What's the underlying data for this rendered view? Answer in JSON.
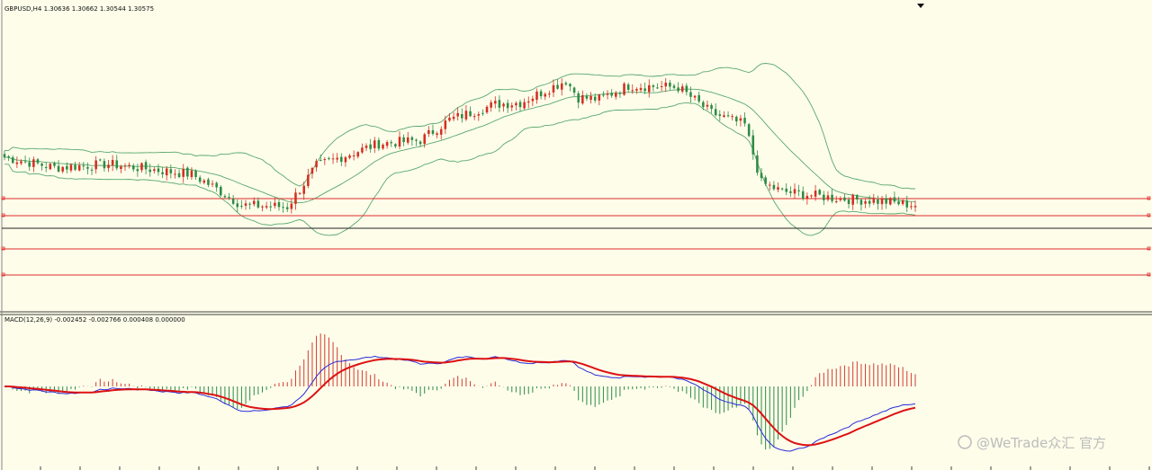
{
  "window": {
    "price_header": "GBPUSD,H4  1.30636 1.30662 1.30544 1.30575",
    "macd_header": "MACD(12,26,9) -0.002452 -0.002766 0.000408 0.000000",
    "watermark": "@WeTrade众汇 官方"
  },
  "colors": {
    "background": "#fdfdea",
    "bull_candle": "#d32f20",
    "bear_candle": "#2e8b45",
    "bollinger": "#5aa86e",
    "level_line": "#e02a2a",
    "current_price_line": "#222222",
    "macd_line": "#2b2bd8",
    "signal_line": "#dd1111",
    "hist_pos": "#d33b30",
    "hist_neg": "#2e8b45"
  },
  "chart_data": [
    {
      "type": "candlestick",
      "title": "GBPUSD,H4",
      "last_bar": {
        "open": 1.30636,
        "high": 1.30662,
        "low": 1.30544,
        "close": 1.30575
      },
      "indicators": [
        "Bollinger Bands"
      ],
      "horizontal_levels": 4,
      "bars": 220,
      "trend_profile": [
        {
          "bar": 0,
          "close": 50
        },
        {
          "bar": 12,
          "close": 44
        },
        {
          "bar": 25,
          "close": 46
        },
        {
          "bar": 45,
          "close": 40
        },
        {
          "bar": 50,
          "close": 33
        },
        {
          "bar": 57,
          "close": 22
        },
        {
          "bar": 68,
          "close": 21
        },
        {
          "bar": 75,
          "close": 45
        },
        {
          "bar": 90,
          "close": 58
        },
        {
          "bar": 100,
          "close": 60
        },
        {
          "bar": 107,
          "close": 72
        },
        {
          "bar": 118,
          "close": 81
        },
        {
          "bar": 124,
          "close": 82
        },
        {
          "bar": 135,
          "close": 95
        },
        {
          "bar": 138,
          "close": 85
        },
        {
          "bar": 143,
          "close": 84
        },
        {
          "bar": 150,
          "close": 92
        },
        {
          "bar": 162,
          "close": 91
        },
        {
          "bar": 170,
          "close": 76
        },
        {
          "bar": 178,
          "close": 69
        },
        {
          "bar": 182,
          "close": 35
        },
        {
          "bar": 187,
          "close": 30
        },
        {
          "bar": 200,
          "close": 26
        },
        {
          "bar": 212,
          "close": 24
        },
        {
          "bar": 219,
          "close": 22
        }
      ]
    },
    {
      "type": "macd",
      "params": [
        12,
        26,
        9
      ],
      "values": {
        "macd": -0.002452,
        "signal": -0.002766,
        "histogram": 0.000408,
        "extra": 0.0
      }
    }
  ]
}
